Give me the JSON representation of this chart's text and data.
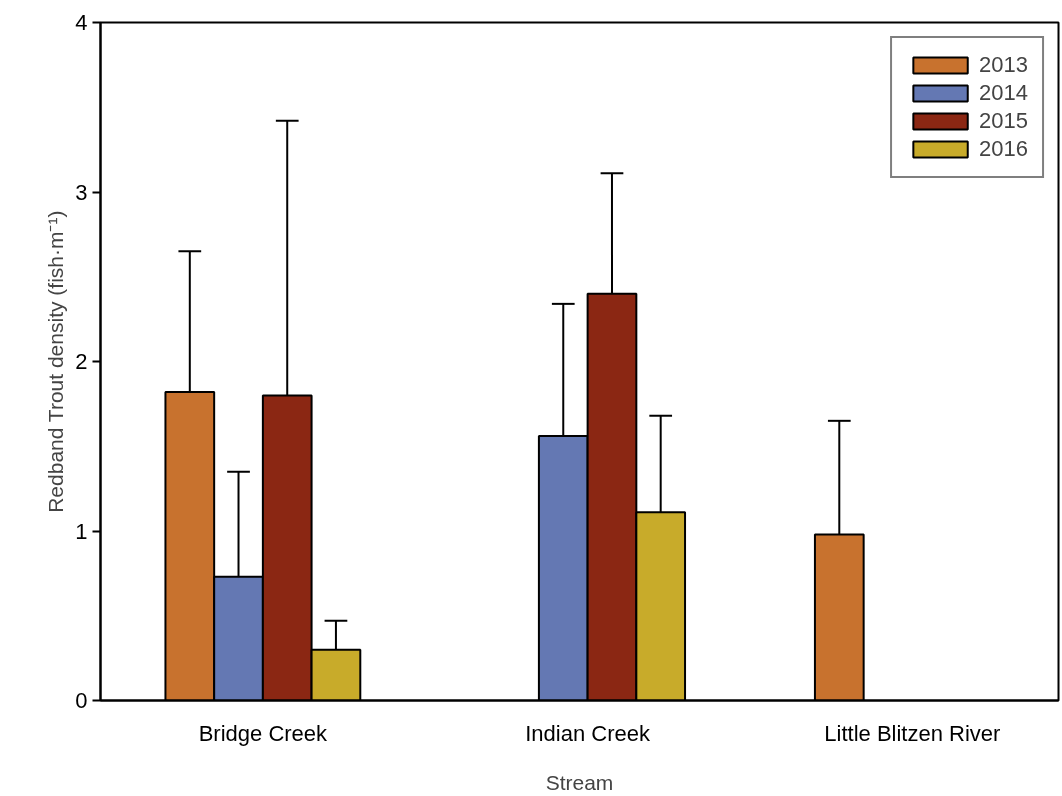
{
  "chart_data": {
    "type": "bar",
    "xlabel": "Stream",
    "ylabel": "Redband Trout density (fish·m⁻¹)",
    "categories": [
      "Bridge Creek",
      "Indian Creek",
      "Little Blitzen River"
    ],
    "series": [
      {
        "name": "2013",
        "color": "#c8722e",
        "values": [
          1.82,
          null,
          0.98
        ],
        "errors": [
          [
            1.82,
            2.65
          ],
          null,
          [
            0.98,
            1.65
          ]
        ]
      },
      {
        "name": "2014",
        "color": "#6478b3",
        "values": [
          0.73,
          1.56,
          null
        ],
        "errors": [
          [
            0.73,
            1.35
          ],
          [
            1.56,
            2.34
          ],
          null
        ]
      },
      {
        "name": "2015",
        "color": "#8b2713",
        "values": [
          1.8,
          2.4,
          null
        ],
        "errors": [
          [
            1.8,
            3.42
          ],
          [
            2.4,
            3.11
          ],
          null
        ]
      },
      {
        "name": "2016",
        "color": "#c8ab2a",
        "values": [
          0.3,
          1.11,
          null
        ],
        "errors": [
          [
            0.3,
            0.47
          ],
          [
            1.11,
            1.68
          ],
          null
        ]
      }
    ],
    "ylim": [
      0,
      4
    ],
    "yticks": [
      0,
      1,
      2,
      3,
      4
    ],
    "grid": false,
    "legend": "top right"
  }
}
